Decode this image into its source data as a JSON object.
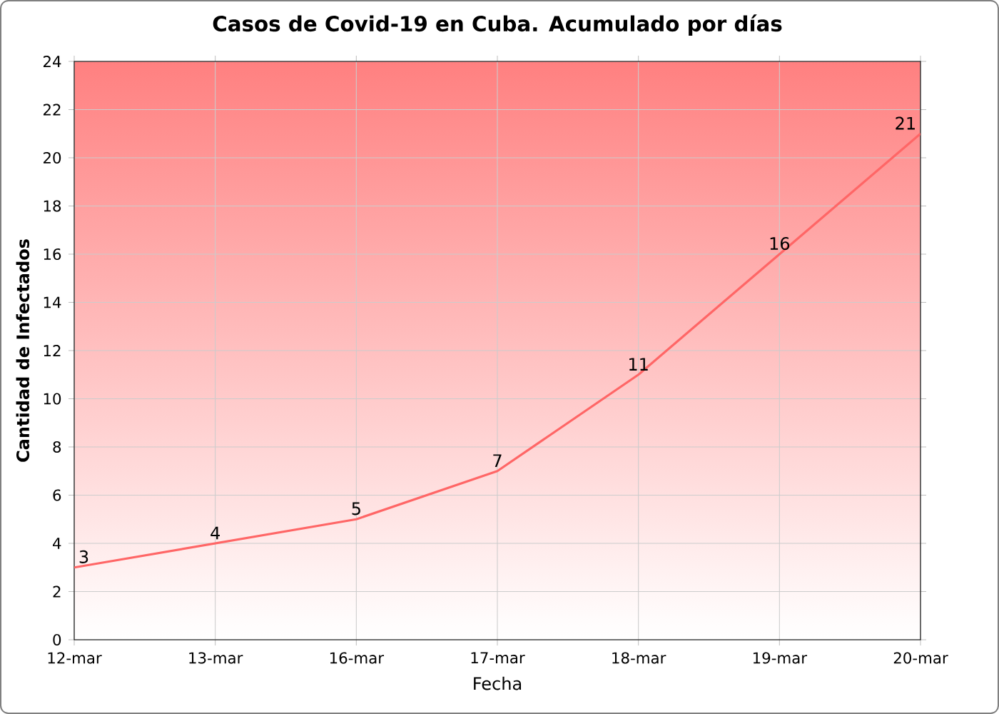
{
  "chart_data": {
    "type": "line",
    "title": "Casos de Covid-19 en Cuba. Acumulado por días",
    "xlabel": "Fecha",
    "ylabel": "Cantidad de Infectados",
    "categories": [
      "12-mar",
      "13-mar",
      "16-mar",
      "17-mar",
      "18-mar",
      "19-mar",
      "20-mar"
    ],
    "series": [
      {
        "color": "#ff6666",
        "values": [
          3,
          4,
          5,
          7,
          11,
          16,
          21
        ]
      }
    ],
    "ylim": [
      0,
      24
    ],
    "yticks": [
      0,
      2,
      4,
      6,
      8,
      10,
      12,
      14,
      16,
      18,
      20,
      22,
      24
    ],
    "grid": true,
    "marker": "none",
    "line_style": "solid",
    "data_labels": true
  }
}
